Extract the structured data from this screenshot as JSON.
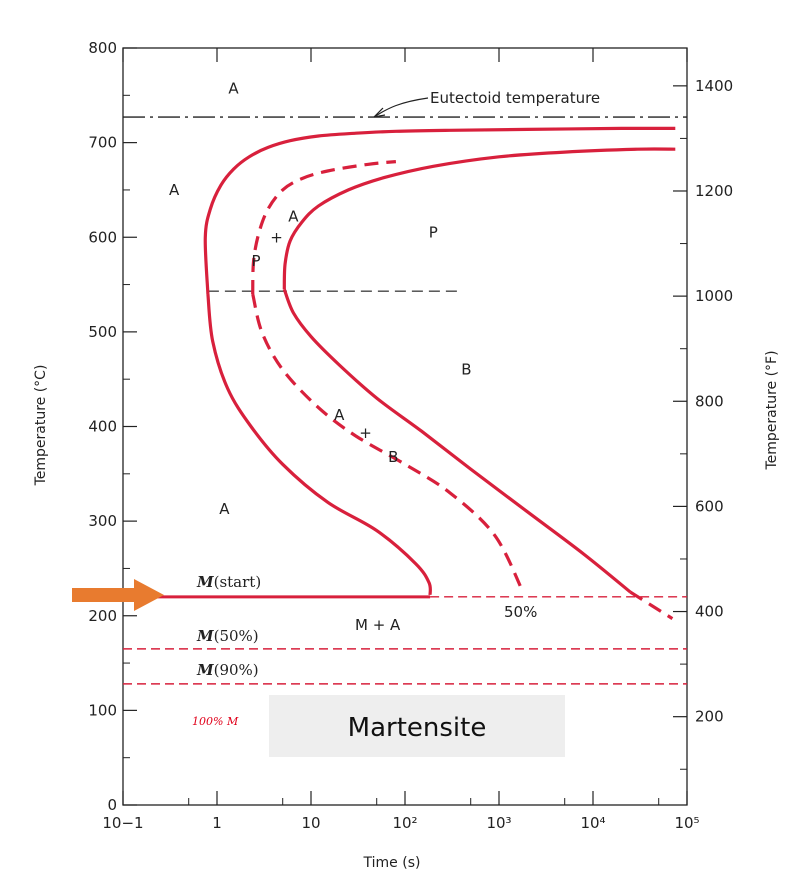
{
  "chart_data": {
    "type": "line",
    "xlabel": "Time (s)",
    "ylabel": "Temperature (°C)",
    "ylabel_right": "Temperature (°F)",
    "xscale": "log",
    "xlim": [
      0.1,
      100000
    ],
    "ylim": [
      0,
      800
    ],
    "x_tick_labels": [
      "10−1",
      "1",
      "10",
      "10²",
      "10³",
      "10⁴",
      "10⁵"
    ],
    "y_ticks": [
      0,
      100,
      200,
      300,
      400,
      500,
      600,
      700,
      800
    ],
    "y_right_ticks": [
      200,
      400,
      600,
      800,
      1000,
      1200,
      1400
    ],
    "series": [
      {
        "style": "solid",
        "color": "#d8203c",
        "x": [
          0.8,
          0.75,
          0.85,
          1.1,
          1.5,
          2.2,
          3.5,
          6,
          12,
          30,
          80,
          300,
          2000,
          20000,
          75000
        ],
        "y": [
          540,
          600,
          630,
          655,
          672,
          685,
          695,
          702,
          707,
          710,
          712,
          713,
          714,
          715,
          715
        ]
      },
      {
        "style": "solid",
        "color": "#d8203c",
        "x": [
          0.8,
          0.9,
          1.3,
          2.3,
          5,
          15,
          50,
          130,
          180,
          185
        ],
        "y": [
          540,
          490,
          440,
          400,
          360,
          320,
          290,
          255,
          235,
          222
        ]
      },
      {
        "style": "dashed",
        "color": "#d8203c",
        "x": [
          2.4,
          2.45,
          2.8,
          3.5,
          5,
          8,
          15,
          40,
          80
        ],
        "y": [
          540,
          575,
          605,
          630,
          650,
          662,
          670,
          677,
          680
        ]
      },
      {
        "style": "dashed",
        "color": "#d8203c",
        "x": [
          2.4,
          3,
          5,
          12,
          30,
          100,
          300,
          900,
          1800
        ],
        "y": [
          540,
          500,
          460,
          420,
          390,
          360,
          330,
          285,
          225
        ]
      },
      {
        "style": "solid",
        "color": "#d8203c",
        "x": [
          5.2,
          5.3,
          6,
          8,
          12,
          25,
          60,
          200,
          1000,
          5000,
          30000,
          75000
        ],
        "y": [
          545,
          572,
          596,
          616,
          633,
          650,
          663,
          675,
          685,
          690,
          693,
          693
        ]
      },
      {
        "style": "solid",
        "color": "#d8203c",
        "x": [
          5.2,
          6.5,
          10,
          20,
          50,
          150,
          500,
          2000,
          8000,
          25000
        ],
        "y": [
          545,
          520,
          495,
          465,
          430,
          395,
          355,
          310,
          265,
          225
        ]
      },
      {
        "style": "dashed",
        "color": "#d8203c",
        "x": [
          25000,
          70000
        ],
        "y": [
          225,
          197
        ]
      }
    ],
    "hlines": [
      {
        "name": "eutectoid",
        "y": 727,
        "x_from": 0.1,
        "x_to": 100000,
        "style": "dashdot",
        "color": "#222"
      },
      {
        "name": "nose",
        "y": 543,
        "x_from": 0.8,
        "x_to": 400,
        "style": "dashed",
        "color": "#444"
      },
      {
        "name": "Ms-solid",
        "y": 220,
        "x_from": 0.1,
        "x_to": 185,
        "style": "solid",
        "color": "#d8203c"
      },
      {
        "name": "Ms-dashed",
        "y": 220,
        "x_from": 185,
        "x_to": 100000,
        "style": "dashed",
        "color": "#d8203c"
      },
      {
        "name": "M50",
        "y": 165,
        "x_from": 0.1,
        "x_to": 100000,
        "style": "dashed",
        "color": "#d8203c"
      },
      {
        "name": "M90",
        "y": 128,
        "x_from": 0.1,
        "x_to": 100000,
        "style": "dashed",
        "color": "#d8203c"
      }
    ],
    "annotations": {
      "eutectoid": "Eutectoid temperature",
      "ms_label": "M",
      "ms_suffix": "(start)",
      "m50_label": "M",
      "m50_suffix": "(50%)",
      "m90_label": "M",
      "m90_suffix": "(90%)",
      "m_plus_a": "M + A",
      "fifty_percent": "50%",
      "martensite": "Martensite",
      "handwritten": "100% M",
      "regions": [
        {
          "text": "A",
          "x": 1.5,
          "y": 757
        },
        {
          "text": "A",
          "x": 0.35,
          "y": 650
        },
        {
          "text": "A",
          "x": 6.5,
          "y": 622
        },
        {
          "text": "+",
          "x": 4.3,
          "y": 600
        },
        {
          "text": "P",
          "x": 2.6,
          "y": 575
        },
        {
          "text": "P",
          "x": 200,
          "y": 605
        },
        {
          "text": "B",
          "x": 450,
          "y": 460
        },
        {
          "text": "A",
          "x": 20,
          "y": 412
        },
        {
          "text": "+",
          "x": 38,
          "y": 393
        },
        {
          "text": "B",
          "x": 75,
          "y": 368
        },
        {
          "text": "A",
          "x": 1.2,
          "y": 313
        }
      ]
    },
    "arrow_color": "#e87b2f",
    "arrow_y": 220
  }
}
